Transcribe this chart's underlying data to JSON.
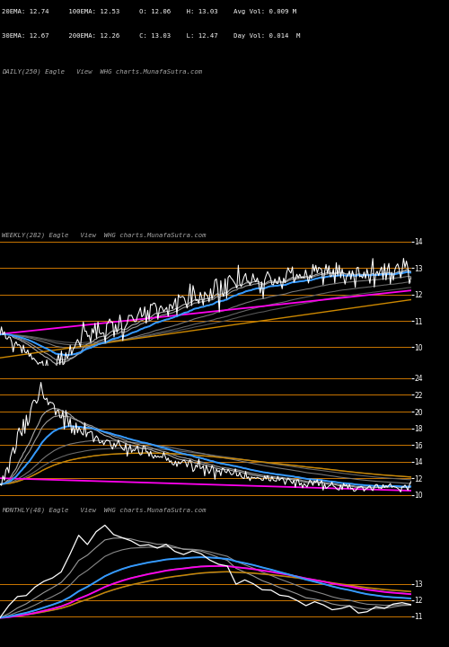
{
  "background_color": "#000000",
  "text_color": "#ffffff",
  "orange_line_color": "#cc7700",
  "info_text_line1": "20EMA: 12.74     100EMA: 12.53     O: 12.06    H: 13.03    Avg Vol: 0.009 M",
  "info_text_line2": "30EMA: 12.67     200EMA: 12.26     C: 13.03    L: 12.47    Day Vol: 0.014  M",
  "daily_label": "DAILY(250) Eagle   View  WHG charts.MunafaSutra.com",
  "weekly_label": "WEEKLY(282) Eagle   View  WHG charts.MunafaSutra.com",
  "monthly_label": "MONTHLY(48) Eagle   View  WHG charts.MunafaSutra.com",
  "weekly1_yticks": [
    10,
    11,
    12,
    13,
    14
  ],
  "weekly1_ylim": [
    9.3,
    14.5
  ],
  "weekly2_yticks": [
    10,
    12,
    14,
    16,
    18,
    20,
    22,
    24
  ],
  "weekly2_ylim": [
    9.0,
    25.5
  ],
  "monthly_yticks": [
    11,
    12,
    13
  ],
  "monthly_ylim": [
    9.5,
    18.0
  ]
}
